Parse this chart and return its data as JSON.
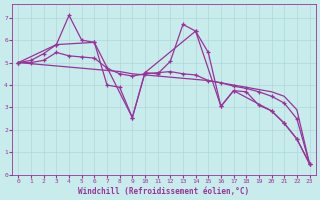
{
  "xlabel": "Windchill (Refroidissement éolien,°C)",
  "background_color": "#c8ecec",
  "grid_color": "#b0d8d8",
  "line_color": "#993399",
  "xlim": [
    -0.5,
    23.5
  ],
  "ylim": [
    0,
    7.6
  ],
  "xticks": [
    0,
    1,
    2,
    3,
    4,
    5,
    6,
    7,
    8,
    9,
    10,
    11,
    12,
    13,
    14,
    15,
    16,
    17,
    18,
    19,
    20,
    21,
    22,
    23
  ],
  "yticks": [
    0,
    1,
    2,
    3,
    4,
    5,
    6,
    7
  ],
  "lines": [
    {
      "x": [
        0,
        1,
        2,
        3,
        4,
        5,
        6,
        7,
        8,
        9,
        10,
        11,
        12,
        13,
        14,
        15,
        16,
        17,
        18,
        19,
        20,
        21,
        22,
        23
      ],
      "y": [
        5.0,
        5.1,
        5.4,
        5.8,
        7.1,
        6.0,
        5.9,
        4.0,
        3.9,
        2.55,
        4.55,
        4.5,
        5.05,
        6.7,
        6.4,
        5.45,
        3.05,
        3.75,
        3.7,
        3.1,
        2.85,
        2.3,
        1.6,
        0.5
      ],
      "marker": true,
      "linestyle": "-"
    },
    {
      "x": [
        0,
        1,
        2,
        3,
        4,
        5,
        6,
        7,
        8,
        9,
        10,
        11,
        12,
        13,
        14,
        15,
        16,
        17,
        18,
        19,
        20,
        21,
        22,
        23
      ],
      "y": [
        5.0,
        4.95,
        4.9,
        4.85,
        4.8,
        4.75,
        4.7,
        4.65,
        4.6,
        4.5,
        4.45,
        4.4,
        4.35,
        4.3,
        4.25,
        4.2,
        4.1,
        4.0,
        3.9,
        3.8,
        3.7,
        3.5,
        2.9,
        0.5
      ],
      "marker": false,
      "linestyle": "-"
    },
    {
      "x": [
        0,
        1,
        2,
        3,
        4,
        5,
        6,
        7,
        8,
        9,
        10,
        11,
        12,
        13,
        14,
        15,
        16,
        17,
        18,
        19,
        20,
        21,
        22,
        23
      ],
      "y": [
        5.0,
        5.0,
        5.1,
        5.45,
        5.3,
        5.25,
        5.2,
        4.75,
        4.5,
        4.4,
        4.5,
        4.55,
        4.6,
        4.5,
        4.45,
        4.2,
        4.1,
        3.95,
        3.85,
        3.7,
        3.5,
        3.2,
        2.5,
        0.5
      ],
      "marker": true,
      "linestyle": "-"
    },
    {
      "x": [
        0,
        3,
        6,
        9,
        10,
        14,
        16,
        17,
        20,
        21,
        22,
        23
      ],
      "y": [
        5.0,
        5.8,
        5.9,
        2.55,
        4.55,
        6.4,
        3.05,
        3.75,
        2.85,
        2.3,
        1.6,
        0.5
      ],
      "marker": true,
      "linestyle": "-"
    }
  ]
}
